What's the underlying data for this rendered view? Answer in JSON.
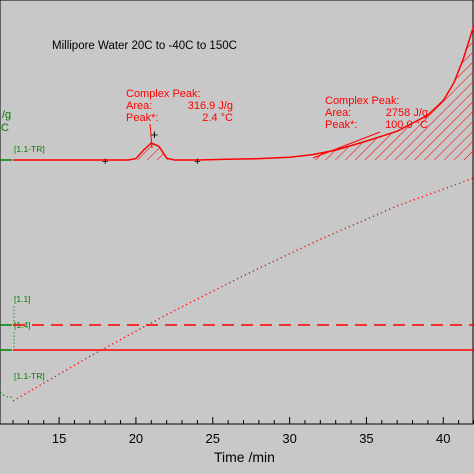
{
  "chart_data": {
    "type": "line",
    "title": "Millipore Water 20C to -40C to 150C",
    "xlabel": "Time /min",
    "xlim": [
      12,
      42
    ],
    "xticks": [
      15,
      20,
      25,
      30,
      35,
      40
    ],
    "grid": false,
    "left_axis_fragments": {
      "unit_top": "/g",
      "unit_bottom": "C"
    },
    "curve_tags": [
      "[1.1-TR]",
      "[1.1]",
      "[1.4]",
      "[1.1-TR]"
    ],
    "series": [
      {
        "style": "solid",
        "color": "#ff0000",
        "x": [
          12,
          18,
          19.5,
          20,
          20.5,
          21,
          21.5,
          22,
          22.5,
          24,
          26,
          28,
          30,
          31.5,
          33,
          35,
          37,
          39,
          40,
          40.7,
          41.3,
          42
        ],
        "y": [
          0,
          0,
          0,
          0.08,
          0.55,
          0.95,
          0.75,
          0.1,
          0,
          0,
          0.04,
          0.08,
          0.15,
          0.3,
          0.55,
          1.05,
          1.6,
          2.5,
          3.3,
          4.3,
          5.6,
          7.5
        ]
      },
      {
        "style": "dotted",
        "color": "#ff0000",
        "x": [
          12,
          17,
          22,
          27,
          32,
          37,
          42
        ],
        "y": [
          -40,
          -8,
          22,
          50,
          76,
          100,
          120
        ]
      },
      {
        "style": "dashed",
        "color": "#ff0000",
        "x": [
          12,
          42
        ],
        "y": [
          0,
          0
        ]
      },
      {
        "style": "solid",
        "color": "#ff0000",
        "x": [
          12,
          42
        ],
        "y": [
          0,
          0
        ]
      }
    ],
    "markers": [
      {
        "label": "+",
        "x": 21.2
      },
      {
        "label": "+",
        "x": 18
      },
      {
        "label": "+",
        "x": 24
      }
    ],
    "annotations": [
      {
        "lines": [
          "Complex Peak:",
          "Area:",
          "316.9 J/g",
          "Peak*:",
          "2.4 °C"
        ],
        "x_range": [
          19.7,
          22.5
        ]
      },
      {
        "lines": [
          "Complex Peak:",
          "Area:",
          "2758 J/g",
          "Peak*:",
          "100.0 °C"
        ],
        "x_range": [
          31.5,
          42
        ]
      }
    ]
  }
}
